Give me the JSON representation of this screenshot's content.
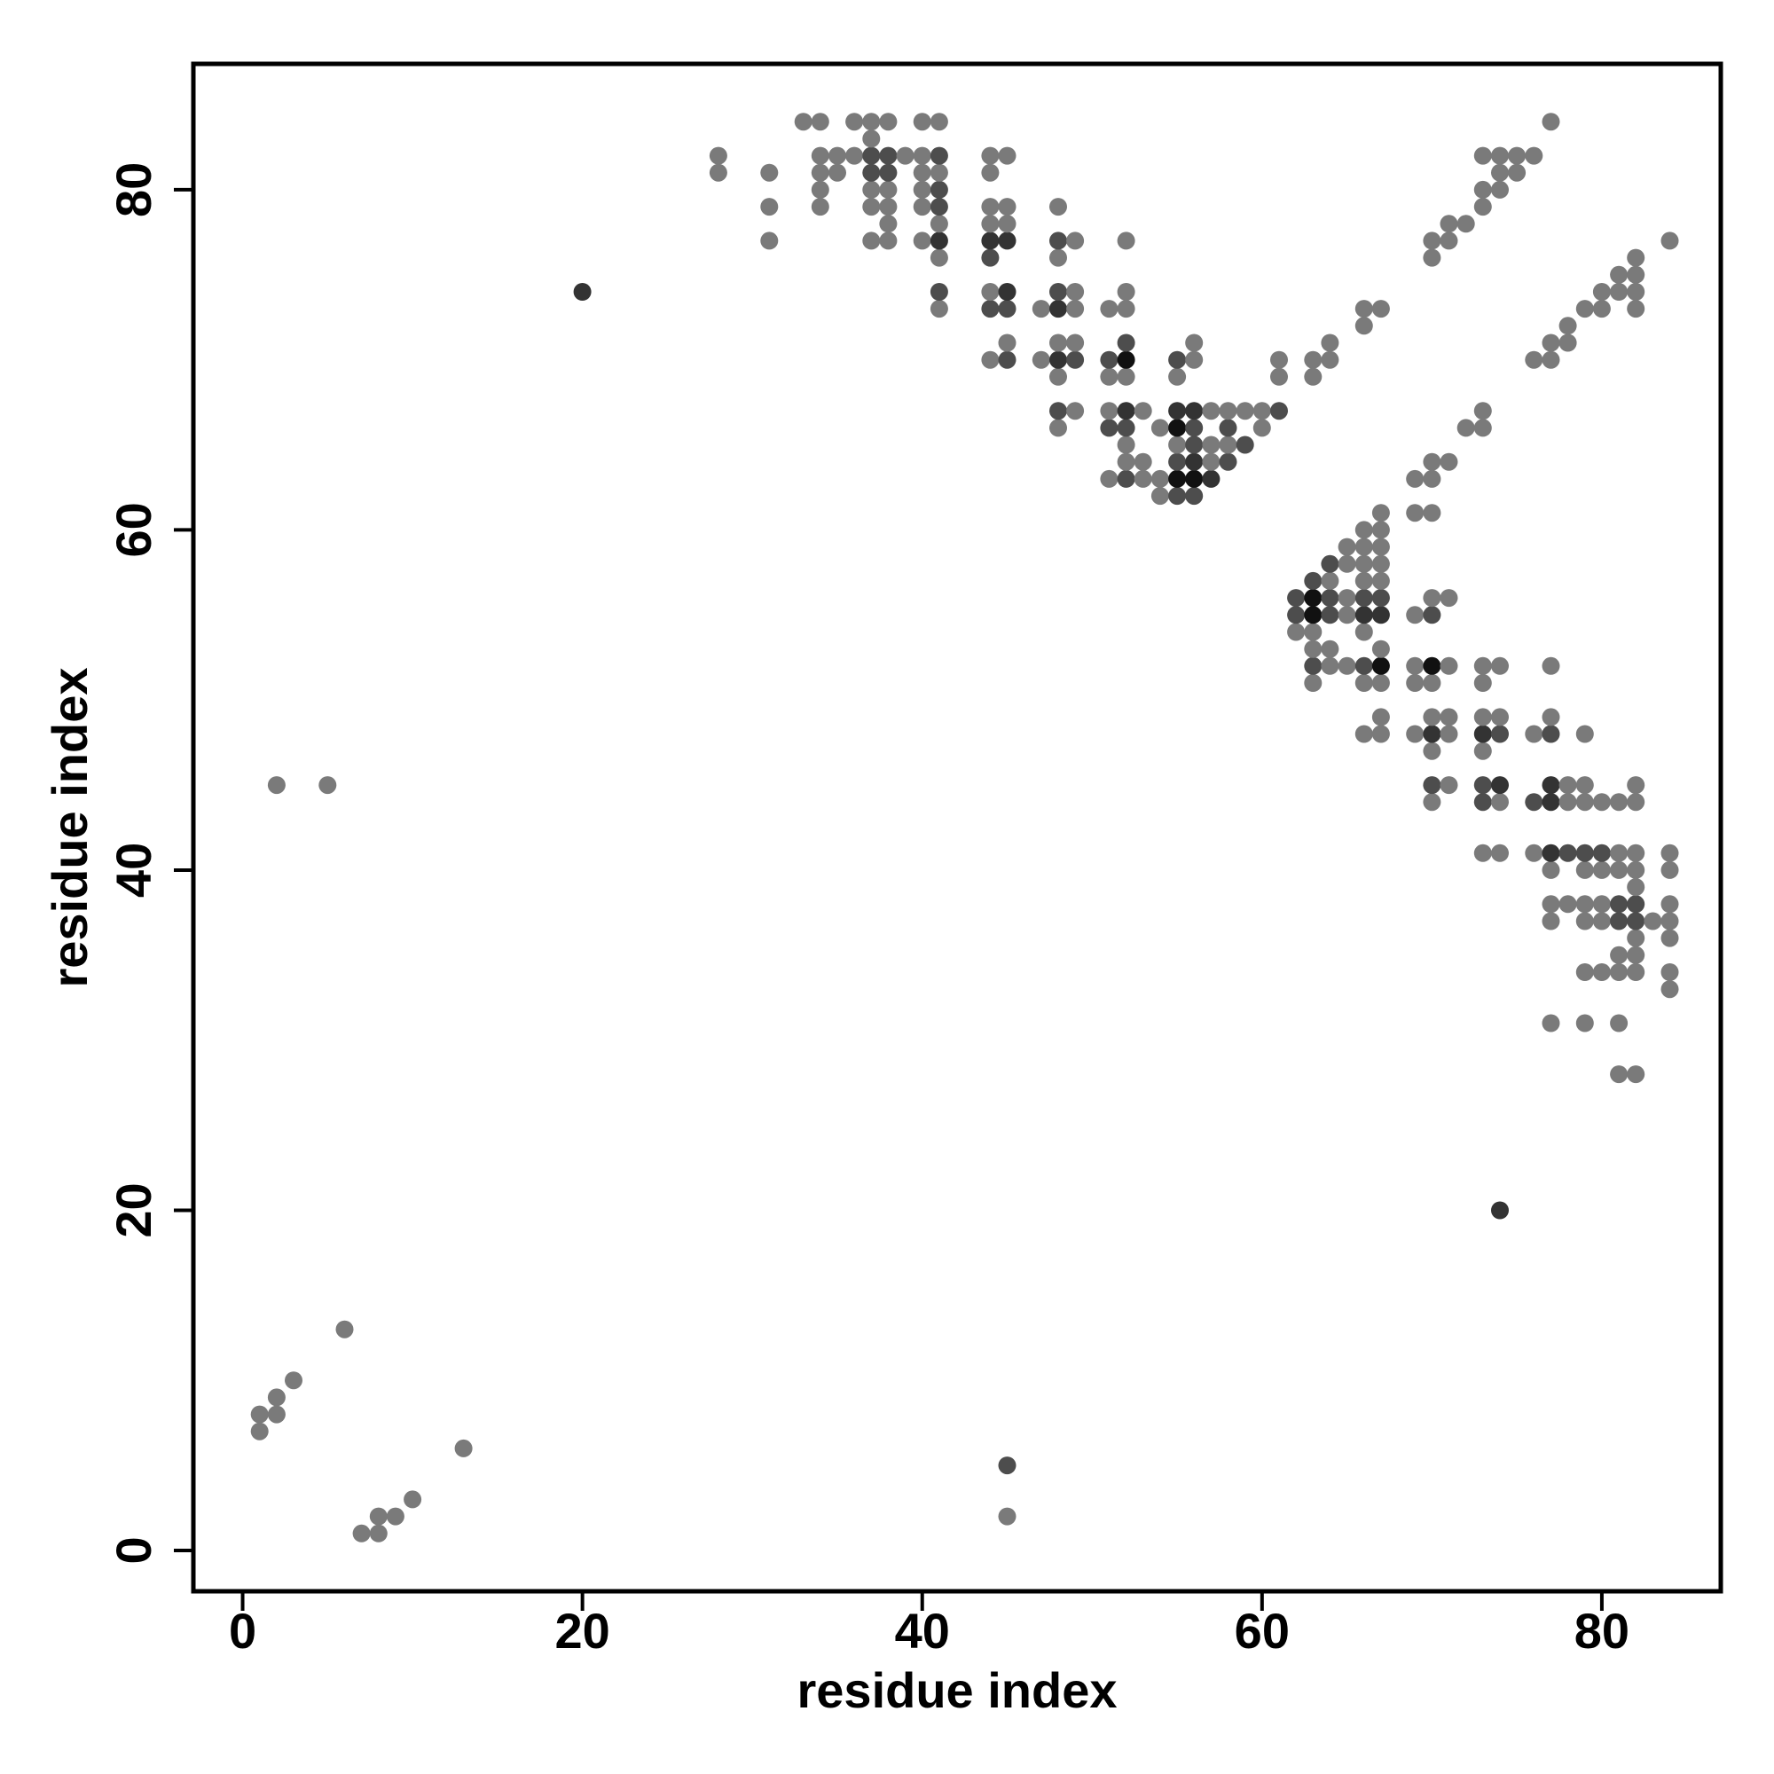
{
  "chart_data": {
    "type": "scatter",
    "title": "",
    "xlabel": "residue index",
    "ylabel": "residue index",
    "xlim": [
      -2.9,
      87.0
    ],
    "ylim": [
      -2.4,
      87.4
    ],
    "xticks": [
      0,
      20,
      40,
      60,
      80
    ],
    "yticks": [
      0,
      20,
      40,
      60,
      80
    ],
    "grid": false,
    "legend": "none",
    "colors": {
      "low": "#7a7a7a",
      "mid": "#4d4d4d",
      "high": "#111111"
    },
    "points": [
      [
        1,
        7,
        1
      ],
      [
        1,
        8,
        1
      ],
      [
        2,
        8,
        1
      ],
      [
        2,
        9,
        1
      ],
      [
        3,
        10,
        1
      ],
      [
        6,
        13,
        1
      ],
      [
        2,
        45,
        1
      ],
      [
        5,
        45,
        1
      ],
      [
        7,
        1,
        1
      ],
      [
        8,
        1,
        1
      ],
      [
        8,
        2,
        1
      ],
      [
        9,
        2,
        1
      ],
      [
        10,
        3,
        1
      ],
      [
        13,
        6,
        1
      ],
      [
        45,
        2,
        1
      ],
      [
        45,
        5,
        2
      ],
      [
        20,
        74,
        3
      ],
      [
        74,
        20,
        3
      ],
      [
        28,
        81,
        1
      ],
      [
        28,
        82,
        1
      ],
      [
        31,
        77,
        1
      ],
      [
        31,
        79,
        1
      ],
      [
        31,
        81,
        1
      ],
      [
        33,
        84,
        1
      ],
      [
        34,
        79,
        1
      ],
      [
        34,
        80,
        1
      ],
      [
        34,
        81,
        1
      ],
      [
        34,
        82,
        1
      ],
      [
        34,
        84,
        1
      ],
      [
        35,
        81,
        1
      ],
      [
        35,
        82,
        1
      ],
      [
        36,
        82,
        1
      ],
      [
        36,
        84,
        1
      ],
      [
        37,
        77,
        1
      ],
      [
        37,
        79,
        1
      ],
      [
        37,
        80,
        1
      ],
      [
        37,
        81,
        2
      ],
      [
        37,
        82,
        2
      ],
      [
        37,
        83,
        1
      ],
      [
        37,
        84,
        1
      ],
      [
        38,
        77,
        1
      ],
      [
        38,
        78,
        1
      ],
      [
        38,
        79,
        1
      ],
      [
        38,
        80,
        1
      ],
      [
        38,
        81,
        2
      ],
      [
        38,
        82,
        2
      ],
      [
        38,
        84,
        1
      ],
      [
        39,
        82,
        1
      ],
      [
        40,
        77,
        1
      ],
      [
        40,
        79,
        1
      ],
      [
        40,
        80,
        1
      ],
      [
        40,
        81,
        1
      ],
      [
        40,
        82,
        1
      ],
      [
        40,
        84,
        1
      ],
      [
        41,
        73,
        1
      ],
      [
        41,
        74,
        2
      ],
      [
        41,
        76,
        1
      ],
      [
        41,
        77,
        3
      ],
      [
        41,
        78,
        1
      ],
      [
        41,
        79,
        2
      ],
      [
        41,
        80,
        2
      ],
      [
        41,
        81,
        1
      ],
      [
        41,
        82,
        2
      ],
      [
        41,
        84,
        1
      ],
      [
        44,
        70,
        1
      ],
      [
        44,
        73,
        2
      ],
      [
        44,
        74,
        1
      ],
      [
        44,
        76,
        2
      ],
      [
        44,
        77,
        3
      ],
      [
        44,
        78,
        1
      ],
      [
        44,
        79,
        1
      ],
      [
        44,
        81,
        1
      ],
      [
        44,
        82,
        1
      ],
      [
        45,
        70,
        2
      ],
      [
        45,
        71,
        1
      ],
      [
        45,
        73,
        2
      ],
      [
        45,
        74,
        3
      ],
      [
        45,
        77,
        3
      ],
      [
        45,
        78,
        1
      ],
      [
        45,
        79,
        1
      ],
      [
        45,
        82,
        1
      ],
      [
        47,
        70,
        1
      ],
      [
        47,
        73,
        1
      ],
      [
        48,
        66,
        1
      ],
      [
        48,
        67,
        2
      ],
      [
        48,
        69,
        1
      ],
      [
        48,
        70,
        3
      ],
      [
        48,
        71,
        1
      ],
      [
        48,
        73,
        3
      ],
      [
        48,
        74,
        2
      ],
      [
        48,
        76,
        1
      ],
      [
        48,
        77,
        2
      ],
      [
        48,
        79,
        1
      ],
      [
        49,
        67,
        1
      ],
      [
        49,
        70,
        2
      ],
      [
        49,
        71,
        1
      ],
      [
        49,
        73,
        1
      ],
      [
        49,
        74,
        1
      ],
      [
        49,
        77,
        1
      ],
      [
        51,
        63,
        1
      ],
      [
        51,
        66,
        2
      ],
      [
        51,
        67,
        1
      ],
      [
        51,
        69,
        1
      ],
      [
        51,
        70,
        2
      ],
      [
        51,
        73,
        1
      ],
      [
        52,
        63,
        2
      ],
      [
        52,
        64,
        1
      ],
      [
        52,
        65,
        1
      ],
      [
        52,
        66,
        2
      ],
      [
        52,
        67,
        3
      ],
      [
        52,
        69,
        1
      ],
      [
        52,
        70,
        4
      ],
      [
        52,
        71,
        2
      ],
      [
        52,
        73,
        1
      ],
      [
        52,
        74,
        1
      ],
      [
        52,
        77,
        1
      ],
      [
        53,
        63,
        1
      ],
      [
        53,
        64,
        1
      ],
      [
        53,
        67,
        1
      ],
      [
        54,
        62,
        1
      ],
      [
        54,
        63,
        1
      ],
      [
        54,
        66,
        1
      ],
      [
        55,
        62,
        2
      ],
      [
        55,
        63,
        4
      ],
      [
        55,
        64,
        2
      ],
      [
        55,
        65,
        1
      ],
      [
        55,
        66,
        4
      ],
      [
        55,
        67,
        3
      ],
      [
        55,
        69,
        1
      ],
      [
        55,
        70,
        2
      ],
      [
        56,
        62,
        2
      ],
      [
        56,
        63,
        4
      ],
      [
        56,
        64,
        3
      ],
      [
        56,
        65,
        2
      ],
      [
        56,
        66,
        2
      ],
      [
        56,
        67,
        3
      ],
      [
        56,
        70,
        1
      ],
      [
        56,
        71,
        1
      ],
      [
        57,
        63,
        3
      ],
      [
        57,
        64,
        1
      ],
      [
        57,
        65,
        1
      ],
      [
        57,
        67,
        1
      ],
      [
        58,
        64,
        2
      ],
      [
        58,
        65,
        1
      ],
      [
        58,
        66,
        2
      ],
      [
        58,
        67,
        1
      ],
      [
        59,
        65,
        2
      ],
      [
        59,
        67,
        1
      ],
      [
        60,
        66,
        1
      ],
      [
        60,
        67,
        1
      ],
      [
        61,
        67,
        2
      ],
      [
        61,
        69,
        1
      ],
      [
        61,
        70,
        1
      ],
      [
        62,
        54,
        1
      ],
      [
        62,
        55,
        2
      ],
      [
        62,
        56,
        2
      ],
      [
        63,
        51,
        1
      ],
      [
        63,
        52,
        2
      ],
      [
        63,
        53,
        1
      ],
      [
        63,
        54,
        1
      ],
      [
        63,
        55,
        4
      ],
      [
        63,
        56,
        4
      ],
      [
        63,
        57,
        2
      ],
      [
        63,
        69,
        1
      ],
      [
        63,
        70,
        1
      ],
      [
        64,
        52,
        1
      ],
      [
        64,
        53,
        1
      ],
      [
        64,
        55,
        2
      ],
      [
        64,
        56,
        2
      ],
      [
        64,
        57,
        1
      ],
      [
        64,
        58,
        2
      ],
      [
        64,
        70,
        1
      ],
      [
        64,
        71,
        1
      ],
      [
        65,
        52,
        1
      ],
      [
        65,
        55,
        1
      ],
      [
        65,
        56,
        1
      ],
      [
        65,
        58,
        1
      ],
      [
        65,
        59,
        1
      ],
      [
        66,
        48,
        1
      ],
      [
        66,
        51,
        1
      ],
      [
        66,
        52,
        2
      ],
      [
        66,
        54,
        1
      ],
      [
        66,
        55,
        3
      ],
      [
        66,
        56,
        2
      ],
      [
        66,
        57,
        1
      ],
      [
        66,
        58,
        1
      ],
      [
        66,
        59,
        1
      ],
      [
        66,
        60,
        1
      ],
      [
        66,
        72,
        1
      ],
      [
        66,
        73,
        1
      ],
      [
        67,
        48,
        1
      ],
      [
        67,
        49,
        1
      ],
      [
        67,
        51,
        1
      ],
      [
        67,
        52,
        4
      ],
      [
        67,
        53,
        1
      ],
      [
        67,
        55,
        3
      ],
      [
        67,
        56,
        2
      ],
      [
        67,
        57,
        1
      ],
      [
        67,
        58,
        1
      ],
      [
        67,
        59,
        1
      ],
      [
        67,
        60,
        1
      ],
      [
        67,
        61,
        1
      ],
      [
        67,
        73,
        1
      ],
      [
        69,
        48,
        1
      ],
      [
        69,
        51,
        1
      ],
      [
        69,
        52,
        1
      ],
      [
        69,
        55,
        1
      ],
      [
        69,
        61,
        1
      ],
      [
        69,
        63,
        1
      ],
      [
        70,
        44,
        1
      ],
      [
        70,
        45,
        2
      ],
      [
        70,
        47,
        1
      ],
      [
        70,
        48,
        3
      ],
      [
        70,
        49,
        1
      ],
      [
        70,
        51,
        1
      ],
      [
        70,
        52,
        4
      ],
      [
        70,
        55,
        2
      ],
      [
        70,
        56,
        1
      ],
      [
        70,
        61,
        1
      ],
      [
        70,
        63,
        1
      ],
      [
        70,
        64,
        1
      ],
      [
        70,
        76,
        1
      ],
      [
        70,
        77,
        1
      ],
      [
        71,
        45,
        1
      ],
      [
        71,
        48,
        1
      ],
      [
        71,
        49,
        1
      ],
      [
        71,
        52,
        1
      ],
      [
        71,
        56,
        1
      ],
      [
        71,
        64,
        1
      ],
      [
        71,
        77,
        1
      ],
      [
        71,
        78,
        1
      ],
      [
        72,
        66,
        1
      ],
      [
        72,
        78,
        1
      ],
      [
        73,
        41,
        1
      ],
      [
        73,
        44,
        2
      ],
      [
        73,
        45,
        2
      ],
      [
        73,
        47,
        1
      ],
      [
        73,
        48,
        3
      ],
      [
        73,
        49,
        1
      ],
      [
        73,
        51,
        1
      ],
      [
        73,
        52,
        1
      ],
      [
        73,
        66,
        1
      ],
      [
        73,
        67,
        1
      ],
      [
        73,
        79,
        1
      ],
      [
        73,
        80,
        1
      ],
      [
        73,
        82,
        1
      ],
      [
        74,
        41,
        1
      ],
      [
        74,
        44,
        1
      ],
      [
        74,
        45,
        3
      ],
      [
        74,
        48,
        2
      ],
      [
        74,
        49,
        1
      ],
      [
        74,
        52,
        1
      ],
      [
        74,
        80,
        1
      ],
      [
        74,
        81,
        1
      ],
      [
        74,
        82,
        1
      ],
      [
        75,
        81,
        1
      ],
      [
        75,
        82,
        1
      ],
      [
        76,
        82,
        1
      ],
      [
        76,
        41,
        1
      ],
      [
        76,
        44,
        2
      ],
      [
        76,
        48,
        1
      ],
      [
        76,
        70,
        1
      ],
      [
        77,
        31,
        1
      ],
      [
        77,
        37,
        1
      ],
      [
        77,
        38,
        1
      ],
      [
        77,
        40,
        1
      ],
      [
        77,
        41,
        3
      ],
      [
        77,
        44,
        3
      ],
      [
        77,
        45,
        3
      ],
      [
        77,
        48,
        2
      ],
      [
        77,
        49,
        1
      ],
      [
        77,
        52,
        1
      ],
      [
        77,
        70,
        1
      ],
      [
        77,
        71,
        1
      ],
      [
        77,
        84,
        1
      ],
      [
        78,
        38,
        1
      ],
      [
        78,
        41,
        2
      ],
      [
        78,
        44,
        1
      ],
      [
        78,
        45,
        1
      ],
      [
        78,
        71,
        1
      ],
      [
        78,
        72,
        1
      ],
      [
        79,
        31,
        1
      ],
      [
        79,
        34,
        1
      ],
      [
        79,
        37,
        1
      ],
      [
        79,
        38,
        1
      ],
      [
        79,
        40,
        1
      ],
      [
        79,
        41,
        2
      ],
      [
        79,
        44,
        1
      ],
      [
        79,
        45,
        1
      ],
      [
        79,
        48,
        1
      ],
      [
        79,
        73,
        1
      ],
      [
        80,
        34,
        1
      ],
      [
        80,
        37,
        1
      ],
      [
        80,
        38,
        1
      ],
      [
        80,
        40,
        1
      ],
      [
        80,
        41,
        2
      ],
      [
        80,
        44,
        1
      ],
      [
        80,
        73,
        1
      ],
      [
        80,
        74,
        1
      ],
      [
        81,
        28,
        1
      ],
      [
        81,
        31,
        1
      ],
      [
        81,
        34,
        1
      ],
      [
        81,
        35,
        1
      ],
      [
        81,
        37,
        2
      ],
      [
        81,
        38,
        2
      ],
      [
        81,
        40,
        1
      ],
      [
        81,
        41,
        1
      ],
      [
        81,
        44,
        1
      ],
      [
        81,
        74,
        1
      ],
      [
        81,
        75,
        1
      ],
      [
        82,
        28,
        1
      ],
      [
        82,
        34,
        1
      ],
      [
        82,
        35,
        1
      ],
      [
        82,
        36,
        1
      ],
      [
        82,
        37,
        2
      ],
      [
        82,
        38,
        2
      ],
      [
        82,
        39,
        1
      ],
      [
        82,
        40,
        1
      ],
      [
        82,
        41,
        1
      ],
      [
        82,
        44,
        1
      ],
      [
        82,
        45,
        1
      ],
      [
        82,
        73,
        1
      ],
      [
        82,
        74,
        1
      ],
      [
        82,
        75,
        1
      ],
      [
        82,
        76,
        1
      ],
      [
        83,
        37,
        1
      ],
      [
        84,
        33,
        1
      ],
      [
        84,
        34,
        1
      ],
      [
        84,
        36,
        1
      ],
      [
        84,
        37,
        1
      ],
      [
        84,
        38,
        1
      ],
      [
        84,
        40,
        1
      ],
      [
        84,
        41,
        1
      ],
      [
        84,
        77,
        1
      ]
    ]
  }
}
